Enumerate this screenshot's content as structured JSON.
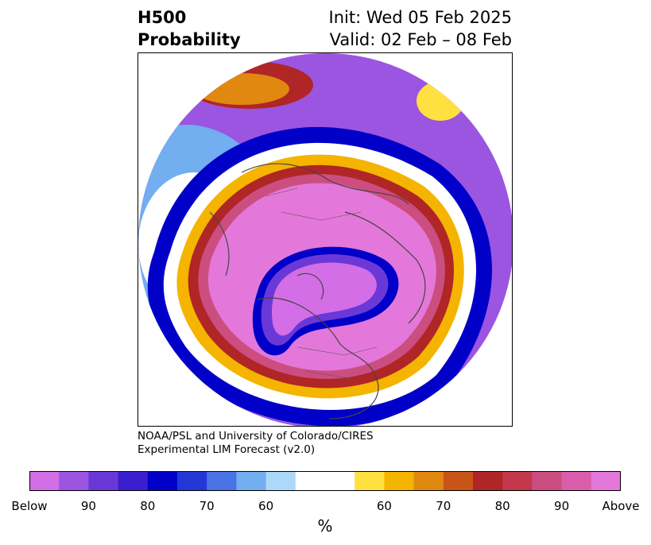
{
  "header": {
    "title_line1": "H500",
    "title_line2": "Probability",
    "init": "Init: Wed 05 Feb 2025",
    "valid": "Valid: 02 Feb – 08 Feb"
  },
  "credit": {
    "line1": "NOAA/PSL and University of Colorado/CIRES",
    "line2": "Experimental LIM Forecast (v2.0)"
  },
  "colorbar": {
    "colors": [
      "#d36ee6",
      "#9b55e0",
      "#6b38d8",
      "#3a1fd0",
      "#0000c8",
      "#2338d6",
      "#4a74e6",
      "#72aef0",
      "#acd8fa",
      "#ffffff",
      "#fee040",
      "#f4b400",
      "#e08810",
      "#c85418",
      "#b02626",
      "#c4384c",
      "#cc4e80",
      "#da5eac",
      "#e478da"
    ],
    "tick_labels": [
      "Below",
      "90",
      "80",
      "70",
      "60",
      "60",
      "70",
      "80",
      "90",
      "Above"
    ],
    "unit": "%"
  },
  "map": {
    "legend_colors": {
      "below_deep": "#d36ee6",
      "below_mid": "#6b38d8",
      "below_edge": "#0000c8",
      "below_light": "#72aef0",
      "neutral": "#ffffff",
      "above_light": "#f4b400",
      "above_mid": "#b02626",
      "above_deep": "#e478da"
    }
  }
}
